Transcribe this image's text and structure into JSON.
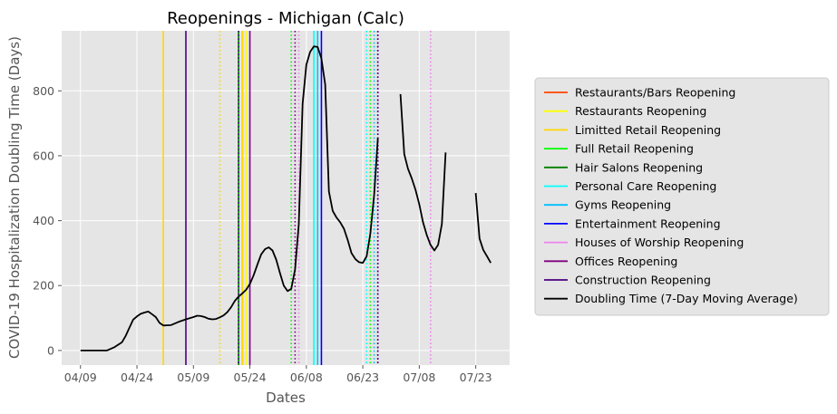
{
  "chart_data": {
    "type": "line",
    "title": "Reopenings - Michigan (Calc)",
    "xlabel": "Dates",
    "ylabel": "COVID-19 Hospitalization Doubling Time (Days)",
    "x_type": "date",
    "xlim": [
      "2020-04-04",
      "2020-08-01"
    ],
    "ylim": [
      -45,
      985
    ],
    "x_ticks": [
      {
        "date": "2020-04-09",
        "label": "04/09"
      },
      {
        "date": "2020-04-24",
        "label": "04/24"
      },
      {
        "date": "2020-05-09",
        "label": "05/09"
      },
      {
        "date": "2020-05-24",
        "label": "05/24"
      },
      {
        "date": "2020-06-08",
        "label": "06/08"
      },
      {
        "date": "2020-06-23",
        "label": "06/23"
      },
      {
        "date": "2020-07-08",
        "label": "07/08"
      },
      {
        "date": "2020-07-23",
        "label": "07/23"
      }
    ],
    "y_ticks": [
      0,
      200,
      400,
      600,
      800
    ],
    "grid": true,
    "legend_position": "right, outside plot",
    "colors": {
      "plot_background": "#e5e5e5",
      "grid": "#ffffff",
      "doubling_time": "#000000"
    },
    "reopening_events": [
      {
        "name": "Restaurants/Bars Reopening",
        "color": "#ff4500",
        "lines": [
          {
            "date": "2020-05-22",
            "style": "solid"
          }
        ]
      },
      {
        "name": "Restaurants Reopening",
        "color": "#ffff00",
        "lines": [
          {
            "date": "2020-05-23",
            "style": "solid"
          }
        ]
      },
      {
        "name": "Limitted Retail Reopening",
        "color": "#ffd700",
        "lines": [
          {
            "date": "2020-05-01",
            "style": "solid"
          },
          {
            "date": "2020-05-16",
            "style": "dotted"
          },
          {
            "date": "2020-05-22",
            "style": "solid"
          }
        ]
      },
      {
        "name": "Full Retail Reopening",
        "color": "#00ff00",
        "lines": [
          {
            "date": "2020-05-21",
            "style": "dotted"
          },
          {
            "date": "2020-06-04",
            "style": "dotted"
          },
          {
            "date": "2020-06-25",
            "style": "dotted"
          }
        ]
      },
      {
        "name": "Hair Salons Reopening",
        "color": "#008000",
        "lines": [
          {
            "date": "2020-05-21",
            "style": "solid"
          }
        ]
      },
      {
        "name": "Personal Care Reopening",
        "color": "#00ffff",
        "lines": [
          {
            "date": "2020-06-10",
            "style": "solid"
          },
          {
            "date": "2020-06-24",
            "style": "dotted"
          }
        ]
      },
      {
        "name": "Gyms Reopening",
        "color": "#00bfff",
        "lines": [
          {
            "date": "2020-06-11",
            "style": "solid"
          },
          {
            "date": "2020-06-26",
            "style": "dotted"
          }
        ]
      },
      {
        "name": "Entertainment Reopening",
        "color": "#0000ff",
        "lines": [
          {
            "date": "2020-06-12",
            "style": "solid"
          },
          {
            "date": "2020-06-27",
            "style": "dotted"
          }
        ]
      },
      {
        "name": "Houses of Worship Reopening",
        "color": "#ee82ee",
        "lines": [
          {
            "date": "2020-06-06",
            "style": "dotted"
          },
          {
            "date": "2020-07-11",
            "style": "dotted"
          }
        ]
      },
      {
        "name": "Offices Reopening",
        "color": "#800080",
        "lines": [
          {
            "date": "2020-05-24",
            "style": "solid"
          },
          {
            "date": "2020-06-05",
            "style": "dotted"
          },
          {
            "date": "2020-06-27",
            "style": "dotted"
          }
        ]
      },
      {
        "name": "Construction Reopening",
        "color": "#4b0082",
        "lines": [
          {
            "date": "2020-05-07",
            "style": "solid"
          },
          {
            "date": "2020-05-21",
            "style": "dotted"
          },
          {
            "date": "2020-06-27",
            "style": "dotted"
          }
        ]
      }
    ],
    "series": [
      {
        "name": "Doubling Time (7-Day Moving Average)",
        "color": "#000000",
        "segments": [
          [
            {
              "x": "2020-04-09",
              "y": 0
            },
            {
              "x": "2020-04-16",
              "y": 0
            },
            {
              "x": "2020-04-18",
              "y": 10
            },
            {
              "x": "2020-04-20",
              "y": 25
            },
            {
              "x": "2020-04-21",
              "y": 45
            },
            {
              "x": "2020-04-22",
              "y": 70
            },
            {
              "x": "2020-04-23",
              "y": 95
            },
            {
              "x": "2020-04-24",
              "y": 105
            },
            {
              "x": "2020-04-25",
              "y": 113
            },
            {
              "x": "2020-04-26",
              "y": 117
            },
            {
              "x": "2020-04-27",
              "y": 120
            },
            {
              "x": "2020-04-28",
              "y": 112
            },
            {
              "x": "2020-04-29",
              "y": 103
            },
            {
              "x": "2020-04-30",
              "y": 85
            },
            {
              "x": "2020-05-01",
              "y": 77
            },
            {
              "x": "2020-05-03",
              "y": 78
            },
            {
              "x": "2020-05-05",
              "y": 88
            },
            {
              "x": "2020-05-07",
              "y": 96
            },
            {
              "x": "2020-05-09",
              "y": 103
            },
            {
              "x": "2020-05-10",
              "y": 107
            },
            {
              "x": "2020-05-11",
              "y": 106
            },
            {
              "x": "2020-05-12",
              "y": 103
            },
            {
              "x": "2020-05-13",
              "y": 98
            },
            {
              "x": "2020-05-14",
              "y": 96
            },
            {
              "x": "2020-05-15",
              "y": 97
            },
            {
              "x": "2020-05-16",
              "y": 102
            },
            {
              "x": "2020-05-17",
              "y": 108
            },
            {
              "x": "2020-05-18",
              "y": 118
            },
            {
              "x": "2020-05-19",
              "y": 133
            },
            {
              "x": "2020-05-20",
              "y": 153
            },
            {
              "x": "2020-05-21",
              "y": 166
            },
            {
              "x": "2020-05-22",
              "y": 176
            },
            {
              "x": "2020-05-23",
              "y": 187
            },
            {
              "x": "2020-05-24",
              "y": 205
            },
            {
              "x": "2020-05-25",
              "y": 232
            },
            {
              "x": "2020-05-26",
              "y": 265
            },
            {
              "x": "2020-05-27",
              "y": 296
            },
            {
              "x": "2020-05-28",
              "y": 312
            },
            {
              "x": "2020-05-29",
              "y": 318
            },
            {
              "x": "2020-05-30",
              "y": 308
            },
            {
              "x": "2020-05-31",
              "y": 280
            },
            {
              "x": "2020-06-01",
              "y": 238
            },
            {
              "x": "2020-06-02",
              "y": 200
            },
            {
              "x": "2020-06-03",
              "y": 183
            },
            {
              "x": "2020-06-04",
              "y": 190
            },
            {
              "x": "2020-06-05",
              "y": 250
            },
            {
              "x": "2020-06-06",
              "y": 390
            },
            {
              "x": "2020-06-07",
              "y": 760
            },
            {
              "x": "2020-06-08",
              "y": 880
            },
            {
              "x": "2020-06-09",
              "y": 920
            },
            {
              "x": "2020-06-10",
              "y": 937
            },
            {
              "x": "2020-06-11",
              "y": 935
            },
            {
              "x": "2020-06-12",
              "y": 900
            },
            {
              "x": "2020-06-13",
              "y": 820
            },
            {
              "x": "2020-06-14",
              "y": 490
            },
            {
              "x": "2020-06-15",
              "y": 430
            },
            {
              "x": "2020-06-16",
              "y": 410
            },
            {
              "x": "2020-06-17",
              "y": 395
            },
            {
              "x": "2020-06-18",
              "y": 375
            },
            {
              "x": "2020-06-19",
              "y": 340
            },
            {
              "x": "2020-06-20",
              "y": 300
            },
            {
              "x": "2020-06-21",
              "y": 282
            },
            {
              "x": "2020-06-22",
              "y": 272
            },
            {
              "x": "2020-06-23",
              "y": 270
            },
            {
              "x": "2020-06-24",
              "y": 290
            },
            {
              "x": "2020-06-25",
              "y": 360
            },
            {
              "x": "2020-06-26",
              "y": 480
            },
            {
              "x": "2020-06-27",
              "y": 655
            }
          ],
          [
            {
              "x": "2020-07-03",
              "y": 790
            },
            {
              "x": "2020-07-04",
              "y": 605
            },
            {
              "x": "2020-07-05",
              "y": 560
            },
            {
              "x": "2020-07-06",
              "y": 530
            },
            {
              "x": "2020-07-07",
              "y": 495
            },
            {
              "x": "2020-07-08",
              "y": 450
            },
            {
              "x": "2020-07-09",
              "y": 395
            },
            {
              "x": "2020-07-10",
              "y": 355
            },
            {
              "x": "2020-07-11",
              "y": 325
            },
            {
              "x": "2020-07-12",
              "y": 308
            },
            {
              "x": "2020-07-13",
              "y": 325
            },
            {
              "x": "2020-07-14",
              "y": 390
            },
            {
              "x": "2020-07-15",
              "y": 610
            }
          ],
          [
            {
              "x": "2020-07-23",
              "y": 485
            },
            {
              "x": "2020-07-24",
              "y": 345
            },
            {
              "x": "2020-07-25",
              "y": 310
            },
            {
              "x": "2020-07-26",
              "y": 290
            },
            {
              "x": "2020-07-27",
              "y": 270
            }
          ]
        ]
      }
    ]
  }
}
